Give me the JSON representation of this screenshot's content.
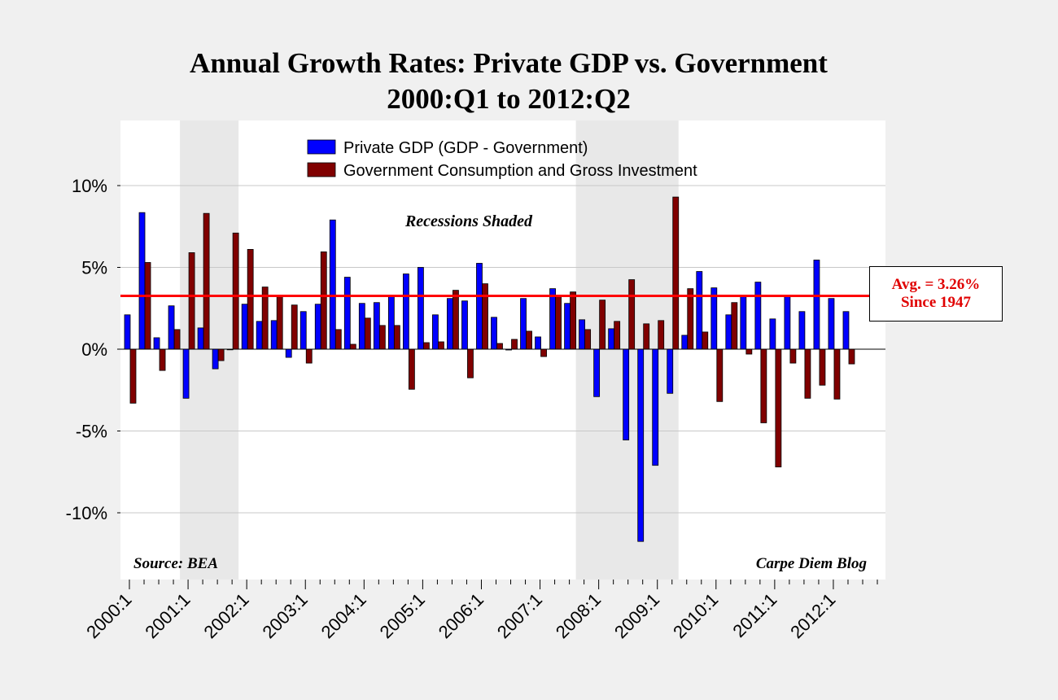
{
  "chart_data": {
    "type": "bar",
    "title": "Annual Growth Rates: Private GDP vs. Government",
    "subtitle": "2000:Q1 to 2012:Q2",
    "xlabel": "",
    "ylabel": "",
    "ylim": [
      -14,
      14
    ],
    "yticks": [
      10,
      5,
      0,
      -5,
      -10
    ],
    "ytick_labels": [
      "10%",
      "5%",
      "0%",
      "-5%",
      "-10%"
    ],
    "xtick_labels": [
      "2000:1",
      "2001:1",
      "2002:1",
      "2003:1",
      "2004:1",
      "2005:1",
      "2006:1",
      "2007:1",
      "2008:1",
      "2009:1",
      "2010:1",
      "2011:1",
      "2012:1"
    ],
    "categories": [
      "2000:1",
      "2000:2",
      "2000:3",
      "2000:4",
      "2001:1",
      "2001:2",
      "2001:3",
      "2001:4",
      "2002:1",
      "2002:2",
      "2002:3",
      "2002:4",
      "2003:1",
      "2003:2",
      "2003:3",
      "2003:4",
      "2004:1",
      "2004:2",
      "2004:3",
      "2004:4",
      "2005:1",
      "2005:2",
      "2005:3",
      "2005:4",
      "2006:1",
      "2006:2",
      "2006:3",
      "2006:4",
      "2007:1",
      "2007:2",
      "2007:3",
      "2007:4",
      "2008:1",
      "2008:2",
      "2008:3",
      "2008:4",
      "2009:1",
      "2009:2",
      "2009:3",
      "2009:4",
      "2010:1",
      "2010:2",
      "2010:3",
      "2010:4",
      "2011:1",
      "2011:2",
      "2011:3",
      "2011:4",
      "2012:1",
      "2012:2"
    ],
    "series": [
      {
        "name": "Private GDP (GDP - Government)",
        "color": "#0000ff",
        "values": [
          2.1,
          8.35,
          0.7,
          2.65,
          -3.0,
          1.3,
          -1.2,
          0.0,
          2.75,
          1.7,
          1.75,
          -0.5,
          2.3,
          2.75,
          7.9,
          4.4,
          2.8,
          2.85,
          3.3,
          4.6,
          5.0,
          2.1,
          3.1,
          2.95,
          5.25,
          1.95,
          -0.05,
          3.1,
          0.75,
          3.7,
          2.8,
          1.8,
          -2.9,
          1.25,
          -5.55,
          -11.75,
          -7.1,
          -2.7,
          0.85,
          4.75,
          3.75,
          2.1,
          3.3,
          4.1,
          1.85,
          3.25,
          2.3,
          5.45,
          3.1,
          2.3
        ]
      },
      {
        "name": "Government Consumption and Gross Investment",
        "color": "#800000",
        "values": [
          -3.3,
          5.3,
          -1.3,
          1.2,
          5.9,
          8.3,
          -0.7,
          7.1,
          6.1,
          3.8,
          3.25,
          2.7,
          -0.85,
          5.95,
          1.2,
          0.3,
          1.9,
          1.45,
          1.45,
          -2.45,
          0.4,
          0.45,
          3.6,
          -1.75,
          4.0,
          0.35,
          0.6,
          1.1,
          -0.45,
          3.3,
          3.5,
          1.2,
          3.0,
          1.7,
          4.25,
          1.55,
          1.75,
          9.3,
          3.7,
          1.05,
          -3.2,
          2.85,
          -0.3,
          -4.5,
          -7.2,
          -0.85,
          -3.0,
          -2.2,
          -3.05,
          -0.9
        ]
      }
    ],
    "reference_line": {
      "value": 3.26,
      "color": "#ff0000",
      "label_line1": "Avg. = 3.26%",
      "label_line2": "Since 1947"
    },
    "recessions": [
      [
        "2001:1",
        "2001:4"
      ],
      [
        "2007:4",
        "2009:2"
      ]
    ],
    "recession_color": "#e8e8e8",
    "grid": true,
    "legend_placement": "top-center",
    "annotations": {
      "recessions": "Recessions Shaded",
      "source": "Source: BEA",
      "credit": "Carpe Diem Blog"
    }
  }
}
